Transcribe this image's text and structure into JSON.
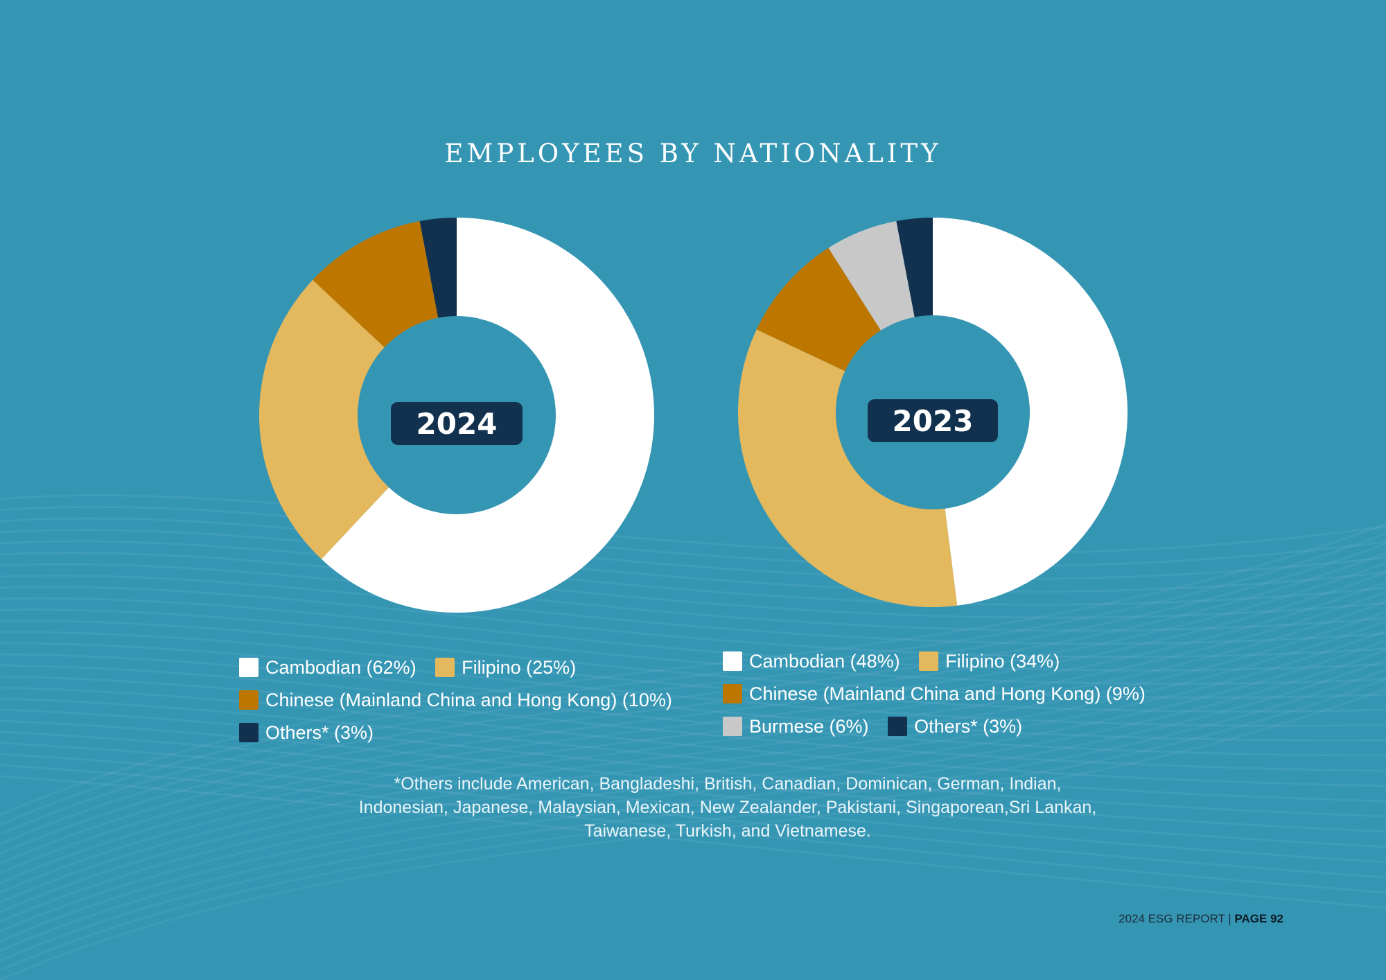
{
  "title": "EMPLOYEES BY NATIONALITY",
  "colors": {
    "background": "#3596b4",
    "cambodian": "#ffffff",
    "filipino": "#e4b85d",
    "chinese": "#bd7700",
    "burmese": "#c8c8c8",
    "others": "#12314f",
    "year_badge": "#12314f"
  },
  "chart_data": [
    {
      "type": "pie",
      "title": "2024",
      "categories": [
        "Cambodian",
        "Filipino",
        "Chinese (Mainland China and Hong Kong)",
        "Others*"
      ],
      "values": [
        62,
        25,
        10,
        3
      ],
      "unit": "%"
    },
    {
      "type": "pie",
      "title": "2023",
      "categories": [
        "Cambodian",
        "Filipino",
        "Chinese (Mainland China and Hong Kong)",
        "Burmese",
        "Others*"
      ],
      "values": [
        48,
        34,
        9,
        6,
        3
      ],
      "unit": "%"
    }
  ],
  "legend2024": {
    "cambodian": "Cambodian (62%)",
    "filipino": "Filipino (25%)",
    "chinese": "Chinese (Mainland China and Hong Kong) (10%)",
    "others": "Others* (3%)"
  },
  "legend2023": {
    "cambodian": "Cambodian (48%)",
    "filipino": "Filipino (34%)",
    "chinese": "Chinese (Mainland China and Hong Kong) (9%)",
    "burmese": "Burmese (6%)",
    "others": "Others* (3%)"
  },
  "footnote": {
    "line1": "*Others include American, Bangladeshi, British, Canadian, Dominican, German, Indian,",
    "line2": "Indonesian, Japanese, Malaysian, Mexican, New Zealander, Pakistani, Singaporean,Sri Lankan,",
    "line3": "Taiwanese, Turkish, and Vietnamese."
  },
  "footer": {
    "report": "2024 ESG REPORT |",
    "page": "PAGE 92"
  }
}
